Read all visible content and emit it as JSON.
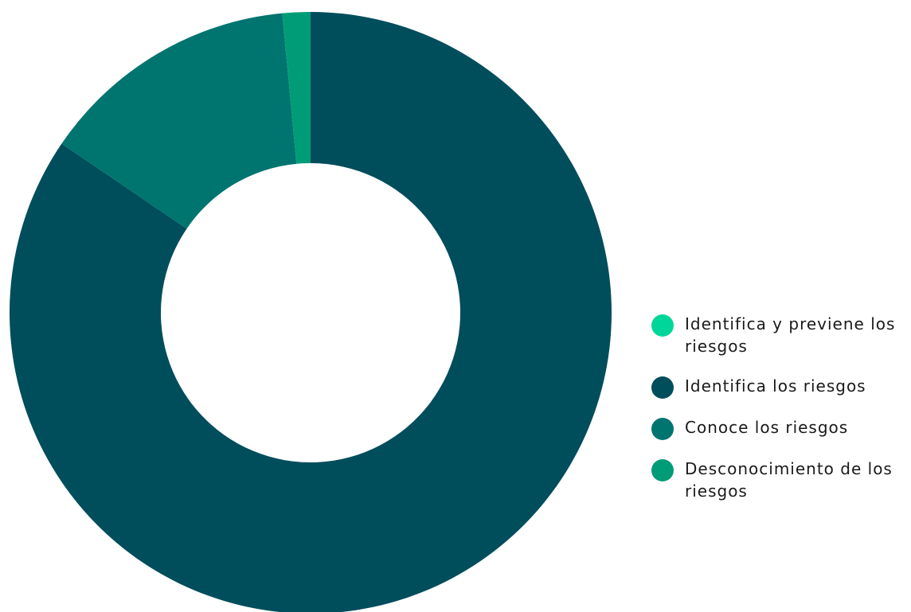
{
  "chart_data": {
    "type": "pie",
    "style": "donut",
    "legend_position": "right",
    "series": [
      {
        "name": "Identifica y previene los riesgos",
        "value": 0.0,
        "color": "#00D69A"
      },
      {
        "name": "Identifica los riesgos",
        "value": 84.5,
        "color": "#004D5C"
      },
      {
        "name": "Conoce los riesgos",
        "value": 14.0,
        "color": "#00746F"
      },
      {
        "name": "Desconocimiento de los riesgos",
        "value": 1.5,
        "color": "#009C77"
      }
    ]
  }
}
